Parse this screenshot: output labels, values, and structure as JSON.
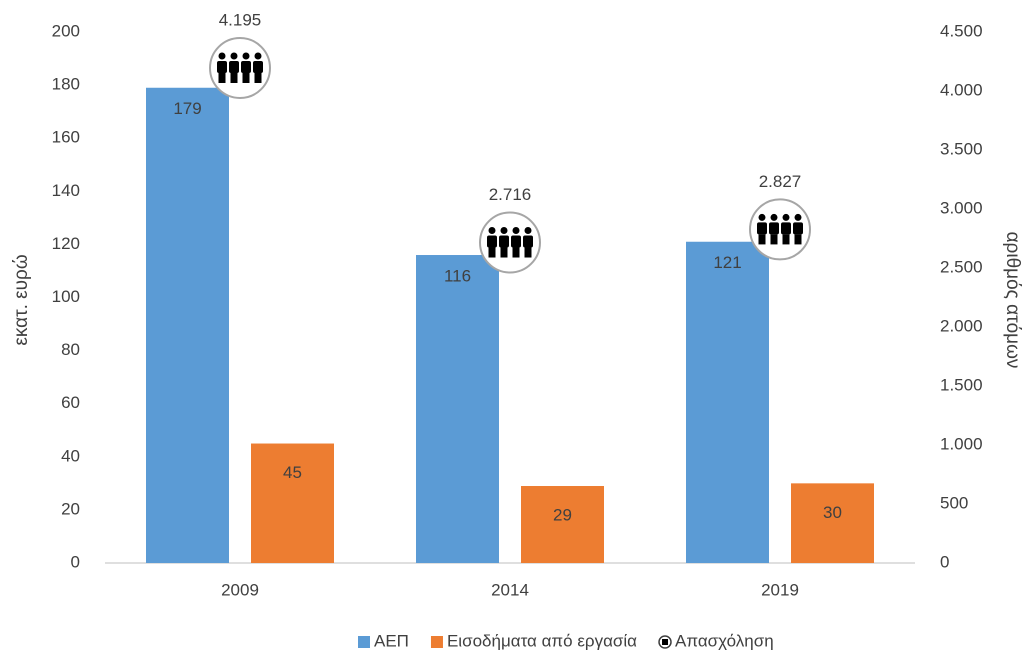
{
  "chart_data": {
    "type": "bar",
    "categories": [
      "2009",
      "2014",
      "2019"
    ],
    "series": [
      {
        "name": "ΑΕΠ",
        "color": "#5b9bd5",
        "values": [
          179,
          116,
          121
        ]
      },
      {
        "name": "Εισοδήματα από εργασία",
        "color": "#ed7d31",
        "values": [
          45,
          29,
          30
        ]
      },
      {
        "name": "Απασχόληση",
        "color": "#000000",
        "axis": "y2",
        "type": "scatter",
        "values": [
          4195,
          2716,
          2827
        ],
        "value_labels": [
          "4.195",
          "2.716",
          "2.827"
        ]
      }
    ],
    "ylabel": "εκατ. ευρώ",
    "y2label": "αριθμός ατόμων",
    "ylim": [
      0,
      200
    ],
    "yticks": [
      0,
      20,
      40,
      60,
      80,
      100,
      120,
      140,
      160,
      180,
      200
    ],
    "y2lim": [
      0,
      4500
    ],
    "y2ticks": [
      0,
      500,
      {
        "value": 1000,
        "label": "1.000"
      },
      {
        "value": 1500,
        "label": "1.500"
      },
      {
        "value": 2000,
        "label": "2.000"
      },
      {
        "value": 2500,
        "label": "2.500"
      },
      {
        "value": 3000,
        "label": "3.000"
      },
      {
        "value": 3500,
        "label": "3.500"
      },
      {
        "value": 4000,
        "label": "4.000"
      },
      {
        "value": 4500,
        "label": "4.500"
      }
    ],
    "grid": false,
    "legend": "bottom"
  }
}
